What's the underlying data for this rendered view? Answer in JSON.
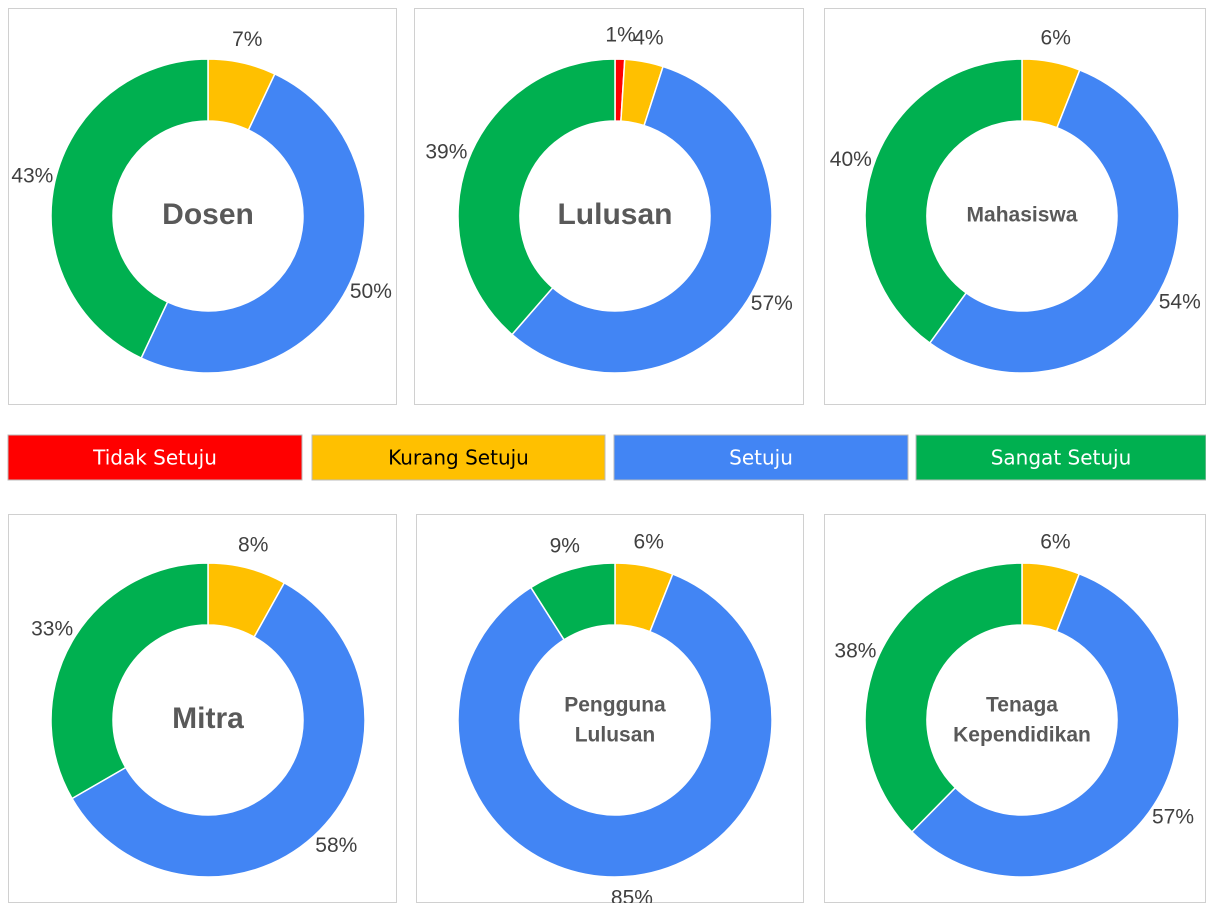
{
  "legend": {
    "categories": [
      "Tidak Setuju",
      "Kurang Setuju",
      "Setuju",
      "Sangat Setuju"
    ],
    "colors": [
      "#ff0000",
      "#ffc000",
      "#4285f4",
      "#00b050"
    ],
    "text_colors": [
      "#ffffff",
      "#000000",
      "#ffffff",
      "#ffffff"
    ]
  },
  "chart_data": [
    {
      "type": "donut",
      "title": "Dosen",
      "values": [
        null,
        7,
        50,
        43
      ],
      "value_labels": [
        null,
        "7%",
        "50%",
        "43%"
      ]
    },
    {
      "type": "donut",
      "title": "Lulusan",
      "values": [
        1,
        4,
        57,
        39
      ],
      "value_labels": [
        "1%",
        "4%",
        "57%",
        "39%"
      ]
    },
    {
      "type": "donut",
      "title": "Mahasiswa",
      "values": [
        null,
        6,
        54,
        40
      ],
      "value_labels": [
        null,
        "6%",
        "54%",
        "40%"
      ]
    },
    {
      "type": "donut",
      "title": "Mitra",
      "values": [
        null,
        8,
        58,
        33
      ],
      "value_labels": [
        null,
        "8%",
        "58%",
        "33%"
      ]
    },
    {
      "type": "donut",
      "title": [
        "Pengguna",
        "Lulusan"
      ],
      "values": [
        null,
        6,
        85,
        9
      ],
      "value_labels": [
        null,
        "6%",
        "85%",
        "9%"
      ]
    },
    {
      "type": "donut",
      "title": [
        "Tenaga",
        "Kependidikan"
      ],
      "values": [
        null,
        6,
        57,
        38
      ],
      "value_labels": [
        null,
        "6%",
        "57%",
        "38%"
      ]
    }
  ]
}
